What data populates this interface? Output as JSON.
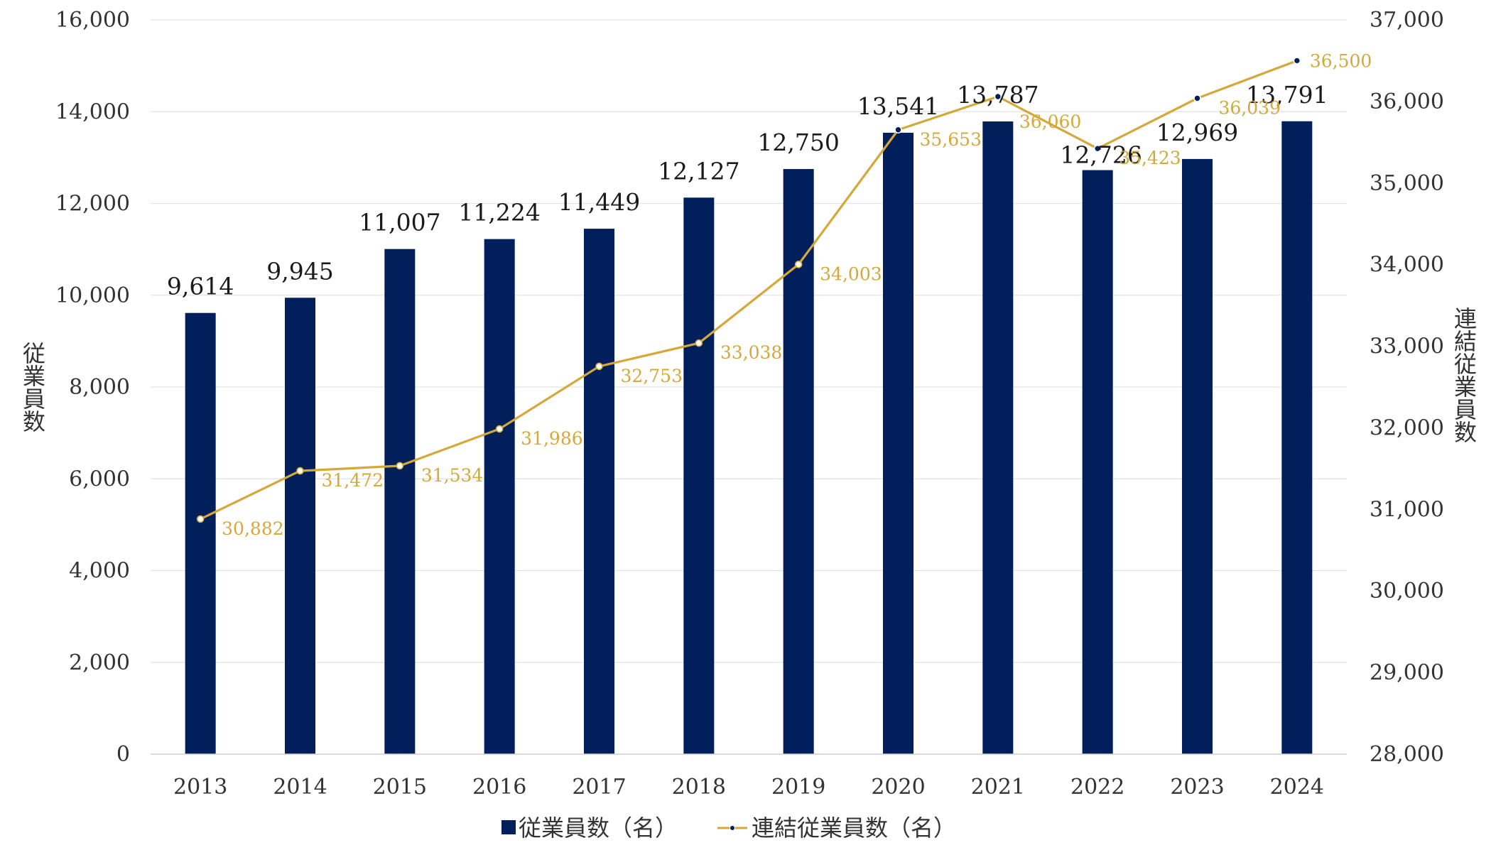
{
  "chart_data": {
    "type": "bar",
    "categories": [
      "2013",
      "2014",
      "2015",
      "2016",
      "2017",
      "2018",
      "2019",
      "2020",
      "2021",
      "2022",
      "2023",
      "2024"
    ],
    "series": [
      {
        "name": "従業員数（名）",
        "type": "bar",
        "axis": "left",
        "values": [
          9614,
          9945,
          11007,
          11224,
          11449,
          12127,
          12750,
          13541,
          13787,
          12726,
          12969,
          13791
        ],
        "labels": [
          "9,614",
          "9,945",
          "11,007",
          "11,224",
          "11,449",
          "12,127",
          "12,750",
          "13,541",
          "13,787",
          "12,726",
          "12,969",
          "13,791"
        ]
      },
      {
        "name": "連結従業員数（名）",
        "type": "line",
        "axis": "right",
        "values": [
          30882,
          31472,
          31534,
          31986,
          32753,
          33038,
          34003,
          35653,
          36060,
          35423,
          36039,
          36500
        ],
        "labels": [
          "30,882",
          "31,472",
          "31,534",
          "31,986",
          "32,753",
          "33,038",
          "34,003",
          "35,653",
          "36,060",
          "35,423",
          "36,039",
          "36,500"
        ]
      }
    ],
    "y_left": {
      "label": "従業員数",
      "range": [
        0,
        16000
      ],
      "ticks": [
        "0",
        "2,000",
        "4,000",
        "6,000",
        "8,000",
        "10,000",
        "12,000",
        "14,000",
        "16,000"
      ]
    },
    "y_right": {
      "label": "連結従業員数",
      "range": [
        28000,
        37000
      ],
      "ticks": [
        "28,000",
        "29,000",
        "30,000",
        "31,000",
        "32,000",
        "33,000",
        "34,000",
        "35,000",
        "36,000",
        "37,000"
      ]
    },
    "grid": true,
    "legend_position": "bottom-center",
    "colors": {
      "bar": "#001f5b",
      "line": "#d4a93a",
      "grid": "#e3e3e3",
      "marker_fill": "#ffffff",
      "marker_fill_dark": "#001f5b"
    }
  }
}
